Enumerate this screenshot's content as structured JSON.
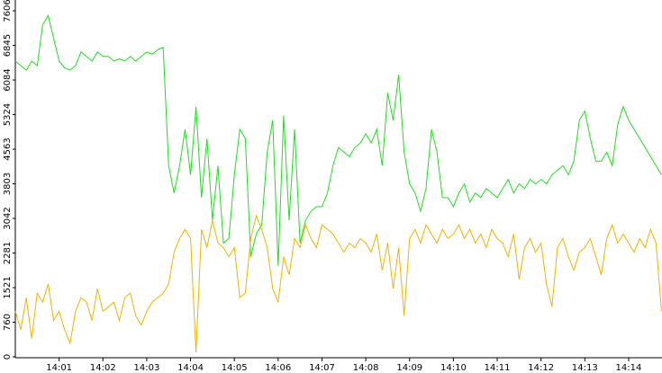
{
  "chart_data": {
    "type": "line",
    "categories": [
      null,
      null,
      null,
      null,
      null,
      null,
      null,
      null,
      "14:01",
      null,
      null,
      null,
      null,
      null,
      null,
      null,
      "14:02",
      null,
      null,
      null,
      null,
      null,
      null,
      null,
      "14:03",
      null,
      null,
      null,
      null,
      null,
      null,
      null,
      "14:04",
      null,
      null,
      null,
      null,
      null,
      null,
      null,
      "14:05",
      null,
      null,
      null,
      null,
      null,
      null,
      null,
      "14:06",
      null,
      null,
      null,
      null,
      null,
      null,
      null,
      "14:07",
      null,
      null,
      null,
      null,
      null,
      null,
      null,
      "14:08",
      null,
      null,
      null,
      null,
      null,
      null,
      null,
      "14:09",
      null,
      null,
      null,
      null,
      null,
      null,
      null,
      "14:10",
      null,
      null,
      null,
      null,
      null,
      null,
      null,
      "14:11",
      null,
      null,
      null,
      null,
      null,
      null,
      null,
      "14:12",
      null,
      null,
      null,
      null,
      null,
      null,
      null,
      "14:13",
      null,
      null,
      null,
      null,
      null,
      null,
      null,
      "14:14",
      null,
      null,
      null,
      null,
      null,
      null
    ],
    "series": [
      {
        "color": "#22dd22",
        "values": [
          6500,
          6400,
          6300,
          6500,
          6400,
          7300,
          7500,
          7000,
          6500,
          6350,
          6300,
          6400,
          6700,
          6600,
          6500,
          6700,
          6600,
          6600,
          6500,
          6550,
          6500,
          6600,
          6500,
          6600,
          6700,
          6650,
          6750,
          6800,
          4200,
          3600,
          4200,
          5000,
          4000,
          5500,
          3500,
          4800,
          3000,
          4200,
          2500,
          2600,
          4000,
          5000,
          4800,
          2200,
          2700,
          2900,
          4500,
          5200,
          2000,
          5300,
          3000,
          5000,
          2500,
          3000,
          3200,
          3300,
          3300,
          3600,
          4200,
          4600,
          4500,
          4400,
          4600,
          4700,
          4900,
          4700,
          5000,
          4200,
          5800,
          5200,
          6200,
          4500,
          3800,
          3600,
          3200,
          3700,
          5000,
          4500,
          3500,
          3500,
          3300,
          3600,
          3800,
          3400,
          3600,
          3500,
          3700,
          3600,
          3500,
          3700,
          3900,
          3600,
          3800,
          3700,
          3900,
          3800,
          3900,
          3800,
          4000,
          4100,
          4200,
          4000,
          4300,
          5200,
          5400,
          4800,
          4300,
          4300,
          4500,
          4200,
          5100,
          5500,
          5200,
          5000,
          4800,
          4600,
          4400,
          4200,
          4000
        ]
      },
      {
        "color": "#f0b400",
        "values": [
          1000,
          600,
          1300,
          400,
          1400,
          1200,
          1600,
          800,
          1000,
          600,
          300,
          1000,
          1300,
          1200,
          800,
          1500,
          1000,
          1100,
          1200,
          800,
          1300,
          1400,
          900,
          700,
          1000,
          1200,
          1300,
          1400,
          1600,
          2300,
          2600,
          2800,
          2600,
          100,
          2800,
          2400,
          3000,
          2500,
          2400,
          2200,
          2400,
          1300,
          1400,
          2600,
          3100,
          2800,
          2400,
          1500,
          1200,
          2200,
          1800,
          2600,
          2400,
          2900,
          2600,
          2400,
          2900,
          2800,
          2700,
          2500,
          2300,
          2500,
          2400,
          2600,
          2500,
          2300,
          2700,
          1900,
          2500,
          1500,
          2400,
          900,
          2600,
          2800,
          2500,
          2900,
          2700,
          2500,
          2800,
          2600,
          2700,
          2900,
          2600,
          2800,
          2500,
          2700,
          2400,
          2800,
          2600,
          2500,
          2200,
          2700,
          1700,
          2400,
          2600,
          2300,
          2500,
          1600,
          1100,
          2400,
          2600,
          2200,
          1900,
          2300,
          2400,
          2600,
          2200,
          1800,
          2600,
          2900,
          2500,
          2700,
          2500,
          2300,
          2600,
          2400,
          2800,
          2500,
          1000
        ]
      }
    ],
    "ylim": [
      0,
      7843
    ],
    "yticks": [
      0,
      760,
      1521,
      2281,
      3042,
      3803,
      4563,
      5324,
      6084,
      6845,
      7606
    ]
  }
}
